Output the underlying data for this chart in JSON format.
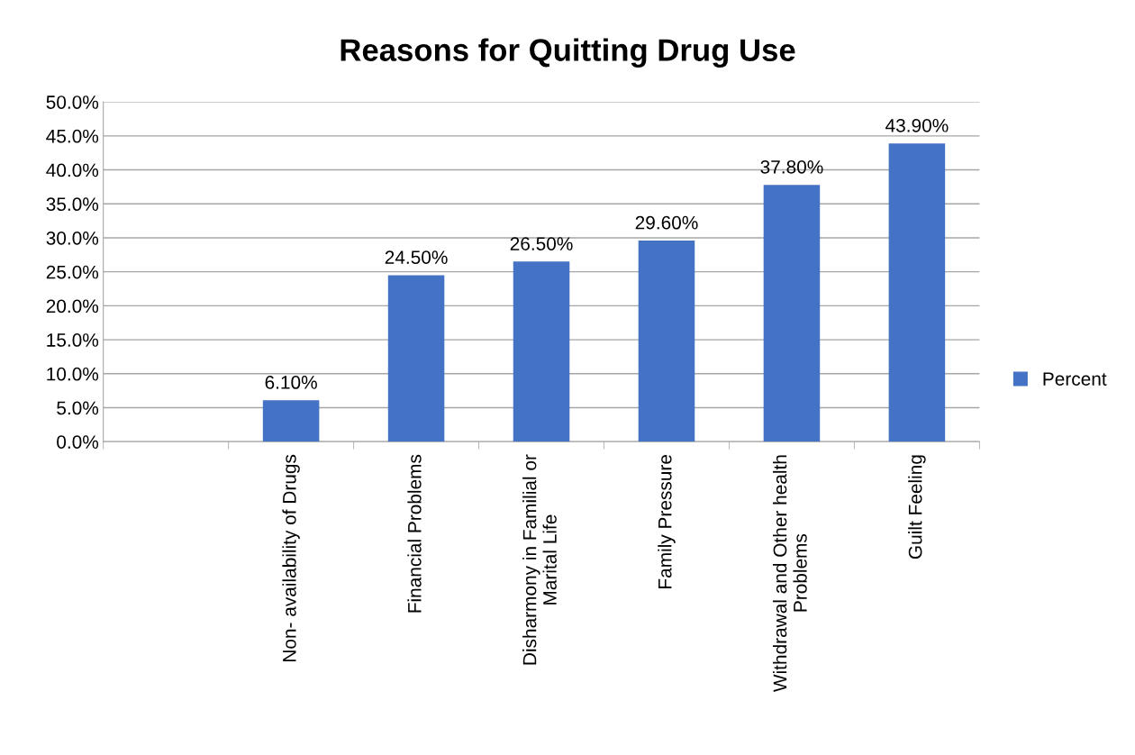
{
  "chart_data": {
    "type": "bar",
    "title": "Reasons for Quitting Drug Use",
    "categories": [
      null,
      "Non- availability of Drugs",
      "Financial Problems",
      "Disharmony in Familial or\nMarital Life",
      "Family Pressure",
      "Withdrawal and Other health\nProblems",
      "Guilt Feeling"
    ],
    "series": [
      {
        "name": "Percent",
        "color": "#4472c4",
        "values": [
          null,
          6.1,
          24.5,
          26.5,
          29.6,
          37.8,
          43.9
        ],
        "value_labels": [
          null,
          "6.10%",
          "24.50%",
          "26.50%",
          "29.60%",
          "37.80%",
          "43.90%"
        ]
      }
    ],
    "ylim": [
      0,
      50
    ],
    "yticks": [
      {
        "value": 0,
        "label": "0.0%"
      },
      {
        "value": 5,
        "label": "5.0%"
      },
      {
        "value": 10,
        "label": "10.0%"
      },
      {
        "value": 15,
        "label": "15.0%"
      },
      {
        "value": 20,
        "label": "20.0%"
      },
      {
        "value": 25,
        "label": "25.0%"
      },
      {
        "value": 30,
        "label": "30.0%"
      },
      {
        "value": 35,
        "label": "35.0%"
      },
      {
        "value": 40,
        "label": "40.0%"
      },
      {
        "value": 45,
        "label": "45.0%"
      },
      {
        "value": 50,
        "label": "50.0%"
      }
    ],
    "grid": "y",
    "legend": "right"
  }
}
